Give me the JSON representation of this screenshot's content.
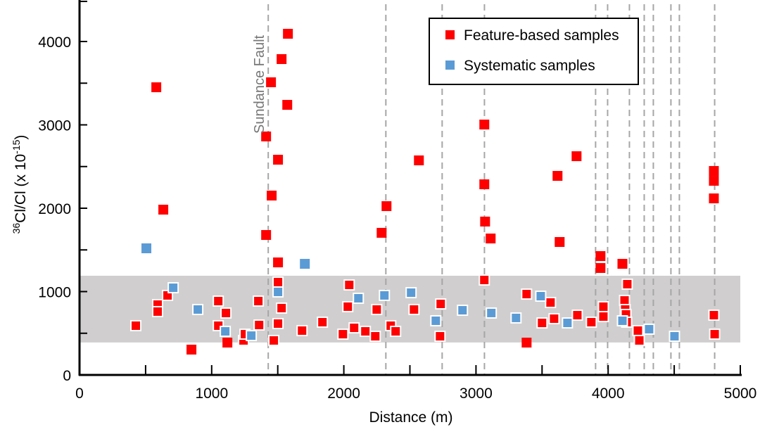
{
  "chart_data": {
    "type": "scatter",
    "title": "",
    "xlabel": "Distance (m)",
    "ylabel": {
      "prefix_sup": "36",
      "main": "Cl/Cl (x 10",
      "exp": "-15",
      "suffix": ")"
    },
    "xlim": [
      0,
      5000
    ],
    "ylim": [
      0,
      4500
    ],
    "x_ticks": [
      0,
      1000,
      2000,
      3000,
      4000,
      5000
    ],
    "x_tick_labels": [
      "0",
      "1000",
      "2000",
      "3000",
      "4000",
      "5000"
    ],
    "x_minor_ticks": [
      500,
      1500,
      2500,
      3500,
      4500
    ],
    "y_ticks": [
      0,
      1000,
      2000,
      3000,
      4000
    ],
    "y_tick_labels": [
      "0",
      "1000",
      "2000",
      "3000",
      "4000"
    ],
    "y_minor_ticks": [
      500,
      1500,
      2500,
      3500
    ],
    "grid": false,
    "legend_position": "top-right",
    "background_band": {
      "y_from": 390,
      "y_to": 1190,
      "color": "#d0cece"
    },
    "vertical_lines": [
      1428,
      2318,
      2744,
      3064,
      3905,
      3996,
      4161,
      4273,
      4342,
      4475,
      4539,
      4806
    ],
    "annotations": [
      {
        "text": "Sundance Fault",
        "x": 1428,
        "orientation": "vertical"
      }
    ],
    "series": [
      {
        "name": "Feature-based samples",
        "color": "#ff0000",
        "points": [
          [
            581,
            3451
          ],
          [
            634,
            1983
          ],
          [
            591,
            844
          ],
          [
            591,
            760
          ],
          [
            666,
            954
          ],
          [
            426,
            591
          ],
          [
            847,
            304
          ],
          [
            1050,
            886
          ],
          [
            1050,
            591
          ],
          [
            1108,
            743
          ],
          [
            1119,
            388
          ],
          [
            1241,
            414
          ],
          [
            1252,
            489
          ],
          [
            1353,
            886
          ],
          [
            1359,
            599
          ],
          [
            1412,
            2861
          ],
          [
            1412,
            1679
          ],
          [
            1449,
            3511
          ],
          [
            1454,
            2152
          ],
          [
            1470,
            414
          ],
          [
            1529,
            3789
          ],
          [
            1577,
            4093
          ],
          [
            1572,
            3240
          ],
          [
            1502,
            2582
          ],
          [
            1502,
            1350
          ],
          [
            1502,
            1114
          ],
          [
            1529,
            802
          ],
          [
            1502,
            616
          ],
          [
            1684,
            532
          ],
          [
            1838,
            633
          ],
          [
            1993,
            489
          ],
          [
            2030,
            819
          ],
          [
            2041,
            1080
          ],
          [
            2078,
            565
          ],
          [
            2163,
            523
          ],
          [
            2238,
            464
          ],
          [
            2249,
            785
          ],
          [
            2286,
            1705
          ],
          [
            2323,
            2025
          ],
          [
            2355,
            591
          ],
          [
            2392,
            523
          ],
          [
            2531,
            785
          ],
          [
            2568,
            2574
          ],
          [
            2733,
            852
          ],
          [
            2728,
            464
          ],
          [
            3063,
            3004
          ],
          [
            3063,
            2287
          ],
          [
            3069,
            1840
          ],
          [
            3111,
            1637
          ],
          [
            3063,
            1139
          ],
          [
            3383,
            970
          ],
          [
            3383,
            388
          ],
          [
            3564,
            869
          ],
          [
            3500,
            624
          ],
          [
            3591,
            675
          ],
          [
            3617,
            2388
          ],
          [
            3633,
            1595
          ],
          [
            3761,
            2624
          ],
          [
            3767,
            717
          ],
          [
            3873,
            633
          ],
          [
            3942,
            1426
          ],
          [
            3942,
            1283
          ],
          [
            3964,
            819
          ],
          [
            3964,
            700
          ],
          [
            4108,
            1333
          ],
          [
            4145,
            1089
          ],
          [
            4124,
            894
          ],
          [
            4129,
            785
          ],
          [
            4135,
            726
          ],
          [
            4140,
            633
          ],
          [
            4225,
            532
          ],
          [
            4236,
            414
          ],
          [
            4800,
            2447
          ],
          [
            4800,
            2329
          ],
          [
            4800,
            2118
          ],
          [
            4800,
            717
          ],
          [
            4806,
            489
          ]
        ]
      },
      {
        "name": "Systematic samples",
        "color": "#5b9bd5",
        "points": [
          [
            506,
            1519
          ],
          [
            709,
            1046
          ],
          [
            895,
            785
          ],
          [
            1103,
            523
          ],
          [
            1300,
            472
          ],
          [
            1502,
            996
          ],
          [
            1705,
            1333
          ],
          [
            2110,
            920
          ],
          [
            2307,
            954
          ],
          [
            2509,
            987
          ],
          [
            2696,
            650
          ],
          [
            2898,
            776
          ],
          [
            3116,
            743
          ],
          [
            3303,
            684
          ],
          [
            3490,
            945
          ],
          [
            3692,
            624
          ],
          [
            4108,
            650
          ],
          [
            4310,
            549
          ],
          [
            4502,
            464
          ]
        ]
      }
    ]
  }
}
